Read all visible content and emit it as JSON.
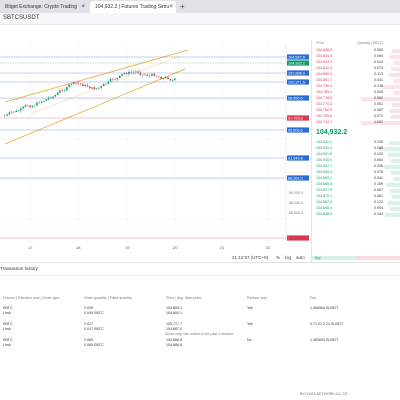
{
  "tabs": [
    {
      "label": "Bitget Exchange: Crypto Trading",
      "active": false
    },
    {
      "label": "104,932.2 | Futures Trading Simu",
      "active": true
    }
  ],
  "symbol": "SBTCSUSDT",
  "chart_data": {
    "type": "candlestick",
    "x_ticks": [
      "17",
      "18",
      "19",
      "20",
      "21",
      "22"
    ],
    "price_tags": [
      {
        "value": "104,547.0",
        "color": "#2b6cd4"
      },
      {
        "value": "104,932.2",
        "color": "#0d9b6d"
      },
      {
        "value": "102,886.4",
        "color": "#2b6cd4"
      },
      {
        "value": "102,371.5",
        "color": "#2b6cd4"
      },
      {
        "value": "98,950.0",
        "color": "#2b6cd4"
      },
      {
        "value": "97,755.8",
        "color": "#d53a52"
      },
      {
        "value": "95,806.6",
        "color": "#2b6cd4"
      },
      {
        "value": "91,545.8",
        "color": "#2b6cd4"
      },
      {
        "value": "89,391.0",
        "color": "#2b6cd4"
      },
      {
        "value": "-",
        "color": "#d53a52"
      }
    ],
    "axis_values": [
      "90,000.0",
      "86,000.0",
      "85,500.0"
    ]
  },
  "chart_footer": {
    "time": "21:12:57 (UTC+9)",
    "percent": "%",
    "log": "log",
    "auto": "auto"
  },
  "orderbook": {
    "headers": {
      "price": "Price",
      "quantity": "Quantity (SBTC)"
    },
    "asks": [
      {
        "p": "104,835.9",
        "q": "0.050"
      },
      {
        "p": "104,834.4",
        "q": "0.094"
      },
      {
        "p": "104,823.3",
        "q": "0.012"
      },
      {
        "p": "104,812.5",
        "q": "0.073"
      },
      {
        "p": "104,806.2",
        "q": "0.113"
      },
      {
        "p": "104,801.7",
        "q": "0.041"
      },
      {
        "p": "104,790.4",
        "q": "0.236"
      },
      {
        "p": "104,785.0",
        "q": "0.045"
      },
      {
        "p": "104,778.8",
        "q": "2.392"
      },
      {
        "p": "104,770.2",
        "q": "0.051"
      },
      {
        "p": "104,762.5",
        "q": "0.087"
      },
      {
        "p": "104,755.6",
        "q": "0.071"
      },
      {
        "p": "104,744.1",
        "q": "1.032"
      }
    ],
    "last_price": "104,932.2",
    "bids": [
      {
        "p": "104,932.2",
        "q": "0.105"
      },
      {
        "p": "104,929.4",
        "q": "0.285"
      },
      {
        "p": "104,921.6",
        "q": "0.120"
      },
      {
        "p": "104,915.0",
        "q": "0.064"
      },
      {
        "p": "104,907.7",
        "q": "0.206"
      },
      {
        "p": "104,900.3",
        "q": "0.078"
      },
      {
        "p": "104,893.1",
        "q": "0.041"
      },
      {
        "p": "104,885.8",
        "q": "0.159"
      },
      {
        "p": "104,877.5",
        "q": "0.087"
      },
      {
        "p": "104,870.2",
        "q": "0.061"
      },
      {
        "p": "104,862.9",
        "q": "0.122"
      },
      {
        "p": "104,855.4",
        "q": "0.094"
      },
      {
        "p": "104,848.0",
        "q": "0.183"
      }
    ],
    "buy_label": "Buy",
    "colors": {
      "ask": "#d53a52",
      "bid": "#0d9b6d"
    }
  },
  "bottom": {
    "tabs": "Transaction history",
    "headers": [
      "Futures | Effective time | Order type",
      "Order quantity | Filled quantity",
      "Price | Avg. filled price",
      "Reduce only",
      "Fee"
    ],
    "rows": [
      {
        "futures": "SBTC",
        "type": "Limit",
        "qty": "0.049",
        "filled": "0.049 SBTC",
        "price": "104,800.1",
        "avg": "104,800.1",
        "reduce": "Yes",
        "fee": "1.006984 SUSDT"
      },
      {
        "futures": "SBTC",
        "type": "Limit",
        "qty": "0.017",
        "filled": "0.017 SBTC",
        "price": "105,717.7",
        "avg": "104,887.0",
        "reduce": "Yes",
        "fee": "0.71 01 2 24 SUSDT"
      },
      {
        "futures": "SBTC",
        "type": "Limit",
        "qty": "0.065",
        "filled": "0.065 SBTC",
        "price": "104,888.8",
        "avg": "104,888.8",
        "reduce": "No",
        "fee": "1.363603 SUSDT"
      }
    ],
    "empty_note": "Show only rule orders in the past 3 months"
  },
  "statusbar": "BIG DATA NETWORK ALL SIT..."
}
